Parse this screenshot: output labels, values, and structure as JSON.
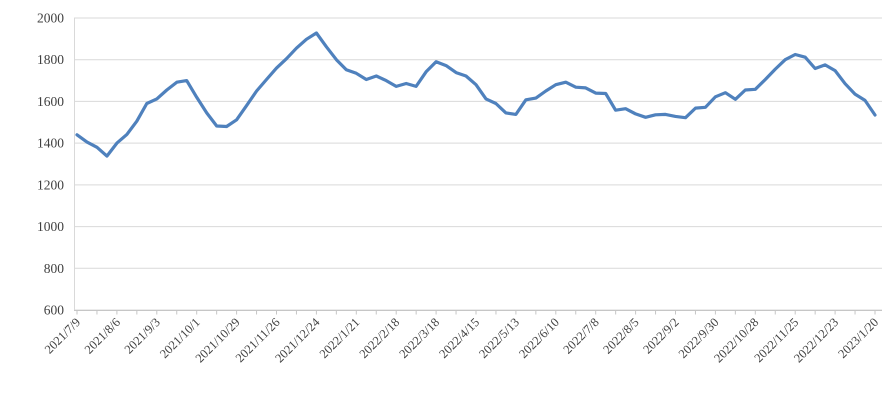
{
  "chart_data": {
    "type": "line",
    "title": "",
    "series_name": "",
    "xlabel": "",
    "ylabel": "",
    "x": [
      "2021/7/9",
      "2021/7/16",
      "2021/7/23",
      "2021/7/30",
      "2021/8/6",
      "2021/8/13",
      "2021/8/20",
      "2021/8/27",
      "2021/9/3",
      "2021/9/10",
      "2021/9/17",
      "2021/9/24",
      "2021/10/1",
      "2021/10/8",
      "2021/10/15",
      "2021/10/22",
      "2021/10/29",
      "2021/11/5",
      "2021/11/12",
      "2021/11/19",
      "2021/11/26",
      "2021/12/3",
      "2021/12/10",
      "2021/12/17",
      "2021/12/24",
      "2021/12/31",
      "2022/1/7",
      "2022/1/14",
      "2022/1/21",
      "2022/1/28",
      "2022/2/4",
      "2022/2/11",
      "2022/2/18",
      "2022/2/25",
      "2022/3/4",
      "2022/3/11",
      "2022/3/18",
      "2022/3/25",
      "2022/4/1",
      "2022/4/8",
      "2022/4/15",
      "2022/4/22",
      "2022/4/29",
      "2022/5/6",
      "2022/5/13",
      "2022/5/20",
      "2022/5/27",
      "2022/6/3",
      "2022/6/10",
      "2022/6/17",
      "2022/6/24",
      "2022/7/1",
      "2022/7/8",
      "2022/7/15",
      "2022/7/22",
      "2022/7/29",
      "2022/8/5",
      "2022/8/12",
      "2022/8/19",
      "2022/8/26",
      "2022/9/2",
      "2022/9/9",
      "2022/9/16",
      "2022/9/23",
      "2022/9/30",
      "2022/10/7",
      "2022/10/14",
      "2022/10/21",
      "2022/10/28",
      "2022/11/4",
      "2022/11/11",
      "2022/11/18",
      "2022/11/25",
      "2022/12/2",
      "2022/12/9",
      "2022/12/16",
      "2022/12/23",
      "2022/12/30",
      "2023/1/6",
      "2023/1/13",
      "2023/1/20"
    ],
    "values": [
      1440,
      1405,
      1380,
      1338,
      1400,
      1442,
      1505,
      1590,
      1612,
      1655,
      1692,
      1700,
      1620,
      1545,
      1482,
      1480,
      1512,
      1580,
      1650,
      1705,
      1760,
      1805,
      1855,
      1898,
      1928,
      1862,
      1800,
      1752,
      1735,
      1705,
      1722,
      1700,
      1672,
      1686,
      1672,
      1742,
      1790,
      1772,
      1738,
      1722,
      1680,
      1612,
      1590,
      1545,
      1538,
      1608,
      1616,
      1650,
      1680,
      1692,
      1668,
      1665,
      1640,
      1638,
      1558,
      1565,
      1540,
      1524,
      1536,
      1538,
      1528,
      1522,
      1568,
      1572,
      1622,
      1642,
      1610,
      1655,
      1658,
      1705,
      1755,
      1800,
      1825,
      1812,
      1758,
      1775,
      1748,
      1685,
      1635,
      1605,
      1535
    ],
    "ylim": [
      600,
      2000
    ],
    "ytick_step": 200,
    "ytick_labels": [
      "2000",
      "1800",
      "1600",
      "1400",
      "1200",
      "1000",
      "800",
      "600"
    ],
    "xtick_label_every": 4,
    "xtick_minor_every": 2,
    "xtick_labels_visible": [
      "2021/7/9",
      "2021/8/6",
      "2021/9/3",
      "2021/10/1",
      "2021/10/29",
      "2021/11/26",
      "2021/12/24",
      "2022/1/21",
      "2022/2/18",
      "2022/3/18",
      "2022/4/15",
      "2022/5/13",
      "2022/6/10",
      "2022/7/8",
      "2022/8/5",
      "2022/9/2",
      "2022/9/30",
      "2022/10/28",
      "2022/11/25",
      "2022/12/23",
      "2023/1/20"
    ],
    "grid": "horizontal",
    "legend": "none",
    "line_color": "#4f81bd",
    "gridline_color": "#d9d9d9",
    "axis_color": "#c6c6c6",
    "label_color": "#404040",
    "background": "#ffffff"
  }
}
